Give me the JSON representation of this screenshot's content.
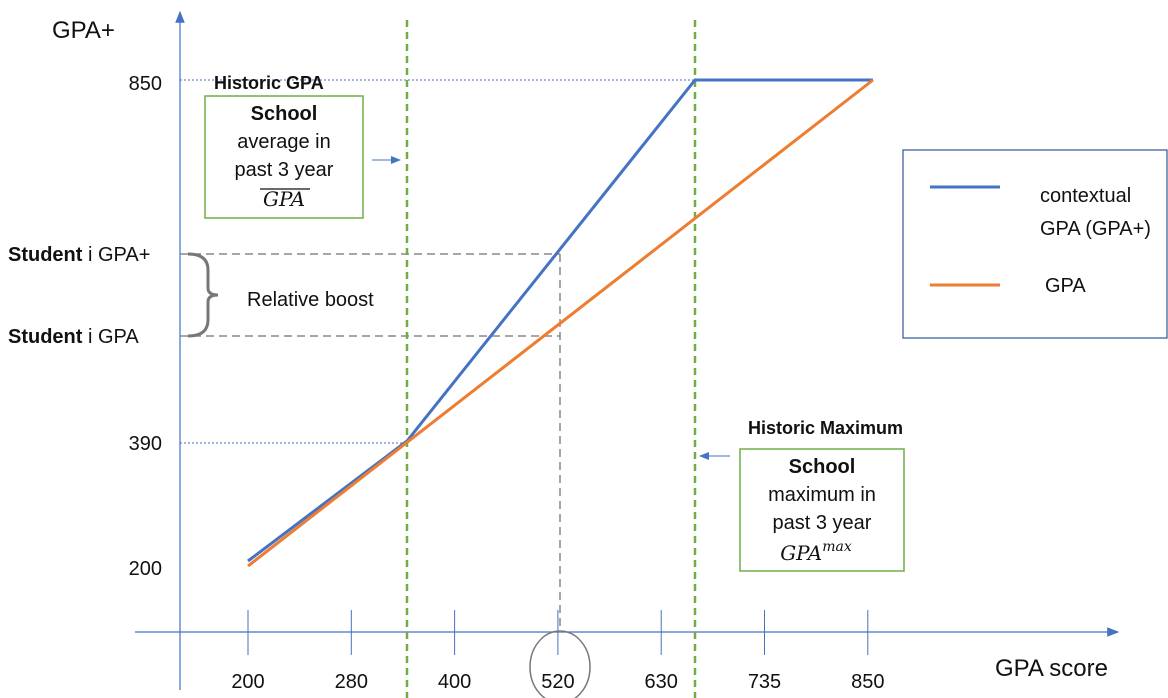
{
  "y_axis": {
    "title": "GPA+",
    "ticks": [
      "850",
      "390",
      "200"
    ]
  },
  "x_axis": {
    "title": "GPA score",
    "ticks": [
      "200",
      "280",
      "400",
      "520",
      "630",
      "735",
      "850"
    ]
  },
  "student_labels": [
    {
      "bold": "Student",
      "rest": "i GPA+"
    },
    {
      "bold": "Student",
      "rest": "i GPA"
    }
  ],
  "brace_label": "Relative boost",
  "callouts": [
    {
      "title": "Historic GPA",
      "lines": [
        "School",
        "average in",
        "past 3 year"
      ],
      "symbol": "GPA"
    },
    {
      "title": "Historic Maximum",
      "lines": [
        "School",
        "maximum in",
        "past 3 year"
      ],
      "symbol": "GPA",
      "superscript": "max"
    }
  ],
  "legend": [
    {
      "lines": [
        "contextual",
        "GPA (GPA+)"
      ],
      "color": "#4472c4"
    },
    {
      "lines": [
        "GPA"
      ],
      "color": "#ed7d31"
    }
  ]
}
